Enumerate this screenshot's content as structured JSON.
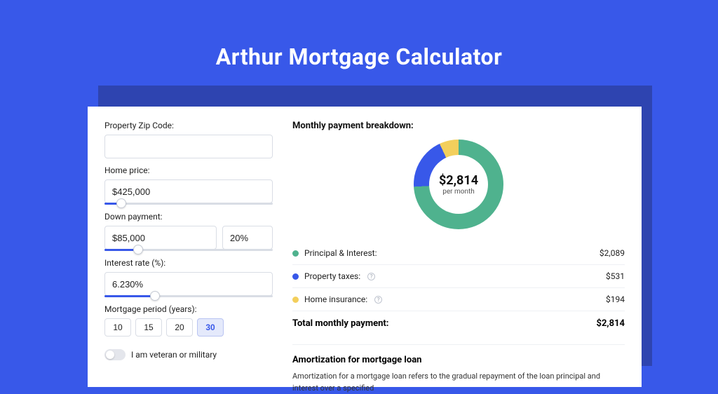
{
  "page": {
    "title": "Arthur Mortgage Calculator",
    "bg_color": "#3858e9",
    "shadow_color": "#2e44b0",
    "card_bg": "#ffffff"
  },
  "form": {
    "zip": {
      "label": "Property Zip Code:",
      "value": ""
    },
    "home_price": {
      "label": "Home price:",
      "value": "$425,000",
      "slider_pct": 10
    },
    "down_payment": {
      "label": "Down payment:",
      "value": "$85,000",
      "pct_value": "20%",
      "slider_pct": 20
    },
    "interest_rate": {
      "label": "Interest rate (%):",
      "value": "6.230%",
      "slider_pct": 30
    },
    "period": {
      "label": "Mortgage period (years):",
      "options": [
        "10",
        "15",
        "20",
        "30"
      ],
      "active_index": 3
    },
    "veteran": {
      "label": "I am veteran or military",
      "on": false
    }
  },
  "breakdown": {
    "title": "Monthly payment breakdown:",
    "donut": {
      "amount": "$2,814",
      "sub": "per month",
      "slices": [
        {
          "label": "Principal & Interest:",
          "value": "$2,089",
          "color": "#4fb28e",
          "deg_start": 0,
          "deg_end": 267,
          "has_info": false
        },
        {
          "label": "Property taxes:",
          "value": "$531",
          "color": "#3858e9",
          "deg_start": 267,
          "deg_end": 335,
          "has_info": true
        },
        {
          "label": "Home insurance:",
          "value": "$194",
          "color": "#f3cf5c",
          "deg_start": 335,
          "deg_end": 360,
          "has_info": true
        }
      ]
    },
    "total": {
      "label": "Total monthly payment:",
      "value": "$2,814"
    }
  },
  "amortization": {
    "title": "Amortization for mortgage loan",
    "text": "Amortization for a mortgage loan refers to the gradual repayment of the loan principal and interest over a specified"
  },
  "styling": {
    "input_border": "#d9dde5",
    "slider_track": "#d9dde5",
    "slider_fill": "#3858e9",
    "period_active_bg": "#e4e9fb",
    "period_active_border": "#b9c4f2",
    "divider": "#eef0f4",
    "label_fontsize": 12,
    "title_fontsize": 32
  }
}
